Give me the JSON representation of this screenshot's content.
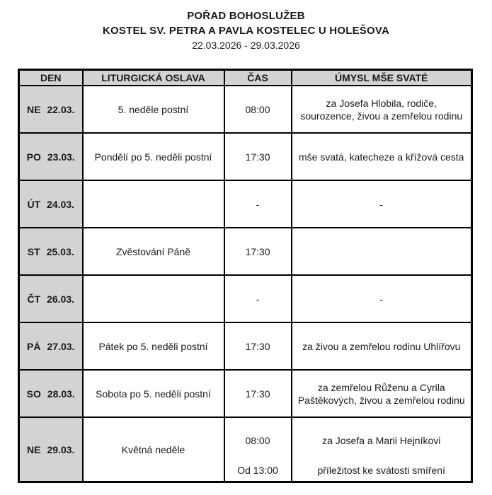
{
  "header": {
    "title": "POŘAD BOHOSLUŽEB",
    "subtitle": "KOSTEL SV. PETRA A PAVLA KOSTELEC U HOLEŠOVA",
    "date_range": "22.03.2026 - 29.03.2026"
  },
  "table": {
    "columns": [
      "DEN",
      "LITURGICKÁ OSLAVA",
      "ČAS",
      "ÚMYSL MŠE SVATÉ"
    ],
    "rows": [
      {
        "day": "NE",
        "date": "22.03.",
        "celebration": "5. neděle postní",
        "times": [
          "08:00"
        ],
        "intentions": [
          "za Josefa Hlobila, rodiče, sourozence, živou a zemřelou rodinu"
        ]
      },
      {
        "day": "PO",
        "date": "23.03.",
        "celebration": "Pondělí po 5. neděli postní",
        "times": [
          "17:30"
        ],
        "intentions": [
          "mše svatá, katecheze a křížová cesta"
        ]
      },
      {
        "day": "ÚT",
        "date": "24.03.",
        "celebration": "",
        "times": [
          "-"
        ],
        "intentions": [
          "-"
        ]
      },
      {
        "day": "ST",
        "date": "25.03.",
        "celebration": "Zvěstování Páně",
        "times": [
          "17:30"
        ],
        "intentions": [
          ""
        ]
      },
      {
        "day": "ČT",
        "date": "26.03.",
        "celebration": "",
        "times": [
          "-"
        ],
        "intentions": [
          "-"
        ]
      },
      {
        "day": "PÁ",
        "date": "27.03.",
        "celebration": "Pátek po 5. neděli postní",
        "times": [
          "17:30"
        ],
        "intentions": [
          "za živou a zemřelou rodinu Uhlířovu"
        ]
      },
      {
        "day": "SO",
        "date": "28.03.",
        "celebration": "Sobota po 5. neděli postní",
        "times": [
          "17:30"
        ],
        "intentions": [
          "za zemřelou Růženu a Cyrila Paštěkových, živou a zemřelou rodinu"
        ]
      },
      {
        "day": "NE",
        "date": "29.03.",
        "celebration": "Květná neděle",
        "times": [
          "08:00",
          "Od 13:00"
        ],
        "intentions": [
          "za Josefa a Marii Hejníkovi",
          "příležitost ke svátosti smíření"
        ]
      }
    ]
  },
  "colors": {
    "header_bg": "#d3d3d3",
    "day_col_bg": "#d3d3d3",
    "border": "#000000"
  }
}
